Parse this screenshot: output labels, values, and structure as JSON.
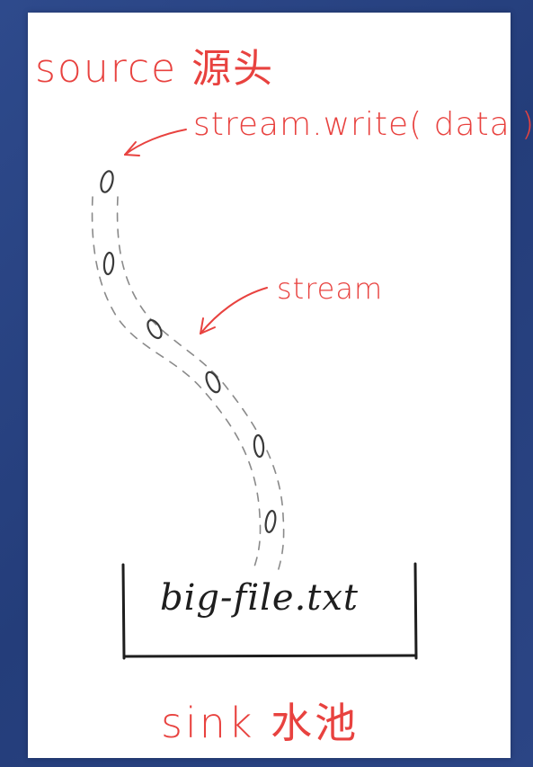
{
  "labels": {
    "source": "source 源头",
    "write_call": "stream.write( data )",
    "stream": "stream",
    "file": "big-file.txt",
    "sink": "sink 水池"
  },
  "colors": {
    "background": "#2b4585",
    "card": "#ffffff",
    "annotation": "#e8423f",
    "ink": "#1e1e1e",
    "dashes": "#8a8a8a"
  },
  "icons": {
    "data_chunk": "chunk-icon",
    "arrow": "arrow-icon",
    "container": "bucket-icon"
  }
}
